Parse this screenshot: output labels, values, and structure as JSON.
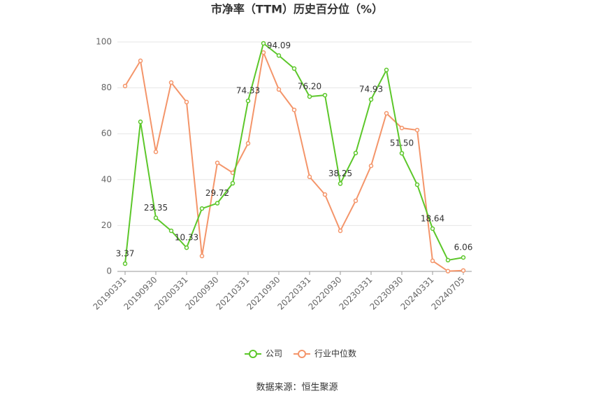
{
  "chart_data": {
    "type": "line",
    "title": "市净率（TTM）历史百分位（%）",
    "categories": [
      "20190331",
      null,
      "20190930",
      null,
      "20200331",
      null,
      "20200930",
      null,
      "20210331",
      null,
      "20210930",
      null,
      "20220331",
      null,
      "20220930",
      null,
      "20230331",
      null,
      "20230930",
      null,
      "20240331",
      null,
      "20240705"
    ],
    "series": [
      {
        "name": "公司",
        "color": "#5cc72a",
        "values": [
          3.37,
          65.2,
          23.35,
          17.7,
          10.33,
          27.4,
          29.72,
          38.4,
          74.33,
          99.4,
          94.09,
          88.4,
          76.2,
          76.8,
          38.25,
          51.6,
          74.93,
          87.8,
          51.5,
          37.8,
          18.64,
          4.9,
          6.06
        ],
        "value_labels": [
          "3.37",
          null,
          "23.35",
          null,
          "10.33",
          null,
          "29.72",
          null,
          "74.33",
          null,
          "94.09",
          null,
          "76.20",
          null,
          "38.25",
          null,
          "74.93",
          null,
          "51.50",
          null,
          "18.64",
          null,
          "6.06"
        ]
      },
      {
        "name": "行业中位数",
        "color": "#f4956a",
        "values": [
          80.8,
          91.8,
          52.1,
          82.3,
          73.8,
          6.7,
          47.3,
          43.0,
          55.8,
          95.4,
          79.3,
          70.4,
          41.2,
          33.5,
          17.7,
          30.8,
          46.0,
          68.9,
          62.5,
          61.6,
          4.6,
          0.1,
          0.4
        ]
      }
    ],
    "ylim": [
      0,
      100
    ],
    "yticks": [
      0,
      20,
      40,
      60,
      80,
      100
    ],
    "grid": true,
    "legend": "bottom",
    "source": "数据来源：恒生聚源"
  }
}
